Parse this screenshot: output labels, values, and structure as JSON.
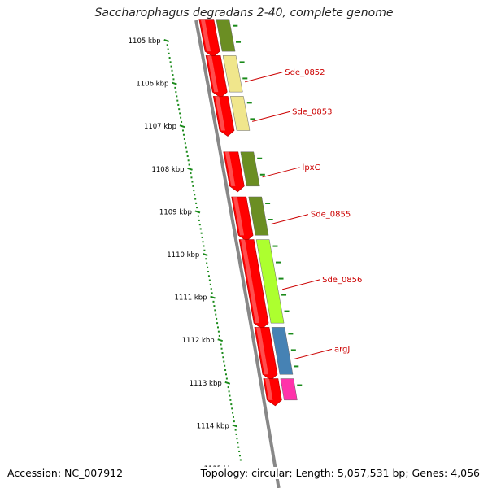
{
  "title": "Saccharophagus degradans 2-40, complete genome",
  "footer": {
    "accession": "Accession: NC_007912",
    "summary": "Topology: circular; Length: 5,057,531 bp; Genes: 4,056"
  },
  "colors": {
    "backbone": "#888888",
    "gene_red": "#ff0000",
    "olive": "#6b8e23",
    "khaki": "#f0e68c",
    "lime": "#adff2f",
    "steelblue": "#4682b4",
    "scale_green": "#1a8a1a",
    "label_red": "#cc0000"
  },
  "ticks": [
    {
      "kbp": 1105,
      "label": "1105 kbp"
    },
    {
      "kbp": 1106,
      "label": "1106 kbp"
    },
    {
      "kbp": 1107,
      "label": "1107 kbp"
    },
    {
      "kbp": 1108,
      "label": "1108 kbp"
    },
    {
      "kbp": 1109,
      "label": "1109 kbp"
    },
    {
      "kbp": 1110,
      "label": "1110 kbp"
    },
    {
      "kbp": 1111,
      "label": "1111 kbp"
    },
    {
      "kbp": 1112,
      "label": "1112 kbp"
    },
    {
      "kbp": 1113,
      "label": "1113 kbp"
    },
    {
      "kbp": 1114,
      "label": "1114 kbp"
    },
    {
      "kbp": 1115,
      "label": "1115 kbp"
    }
  ],
  "genes": [
    {
      "start": 1104.5,
      "end": 1105.25
    },
    {
      "start": 1105.35,
      "end": 1106.2
    },
    {
      "start": 1106.3,
      "end": 1107.1
    },
    {
      "start": 1107.6,
      "end": 1108.4
    },
    {
      "start": 1108.65,
      "end": 1109.55
    },
    {
      "start": 1109.65,
      "end": 1111.6
    },
    {
      "start": 1111.7,
      "end": 1112.8
    },
    {
      "start": 1112.9,
      "end": 1113.4
    }
  ],
  "features": [
    {
      "start": 1104.5,
      "end": 1105.25,
      "color": "olive",
      "label": ""
    },
    {
      "start": 1105.35,
      "end": 1106.2,
      "color": "khaki",
      "label": "Sde_0852"
    },
    {
      "start": 1106.3,
      "end": 1107.1,
      "color": "khaki",
      "label": "Sde_0853"
    },
    {
      "start": 1107.6,
      "end": 1108.4,
      "color": "olive",
      "label": "lpxC"
    },
    {
      "start": 1108.65,
      "end": 1109.55,
      "color": "olive",
      "label": "Sde_0855"
    },
    {
      "start": 1109.65,
      "end": 1111.6,
      "color": "lime",
      "label": "Sde_0856"
    },
    {
      "start": 1111.7,
      "end": 1112.8,
      "color": "steelblue",
      "label": "argJ"
    },
    {
      "start": 1112.9,
      "end": 1113.4,
      "color": "magenta",
      "label": ""
    }
  ]
}
